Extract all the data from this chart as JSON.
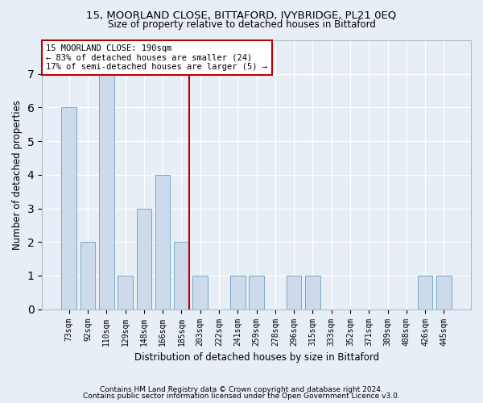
{
  "title1": "15, MOORLAND CLOSE, BITTAFORD, IVYBRIDGE, PL21 0EQ",
  "title2": "Size of property relative to detached houses in Bittaford",
  "xlabel": "Distribution of detached houses by size in Bittaford",
  "ylabel": "Number of detached properties",
  "footnote1": "Contains HM Land Registry data © Crown copyright and database right 2024.",
  "footnote2": "Contains public sector information licensed under the Open Government Licence v3.0.",
  "categories": [
    "73sqm",
    "92sqm",
    "110sqm",
    "129sqm",
    "148sqm",
    "166sqm",
    "185sqm",
    "203sqm",
    "222sqm",
    "241sqm",
    "259sqm",
    "278sqm",
    "296sqm",
    "315sqm",
    "333sqm",
    "352sqm",
    "371sqm",
    "389sqm",
    "408sqm",
    "426sqm",
    "445sqm"
  ],
  "values": [
    6,
    2,
    7,
    1,
    3,
    4,
    2,
    1,
    0,
    1,
    1,
    0,
    1,
    1,
    0,
    0,
    0,
    0,
    0,
    1,
    1
  ],
  "bar_color": "#ccdaeb",
  "bar_edgecolor": "#7aaac8",
  "background_color": "#e8eef6",
  "grid_color": "#ffffff",
  "vline_color": "#bb0000",
  "annotation_text": "15 MOORLAND CLOSE: 190sqm\n← 83% of detached houses are smaller (24)\n17% of semi-detached houses are larger (5) →",
  "annotation_box_facecolor": "#ffffff",
  "annotation_box_edgecolor": "#bb0000",
  "ylim": [
    0,
    8
  ],
  "yticks": [
    0,
    1,
    2,
    3,
    4,
    5,
    6,
    7
  ]
}
